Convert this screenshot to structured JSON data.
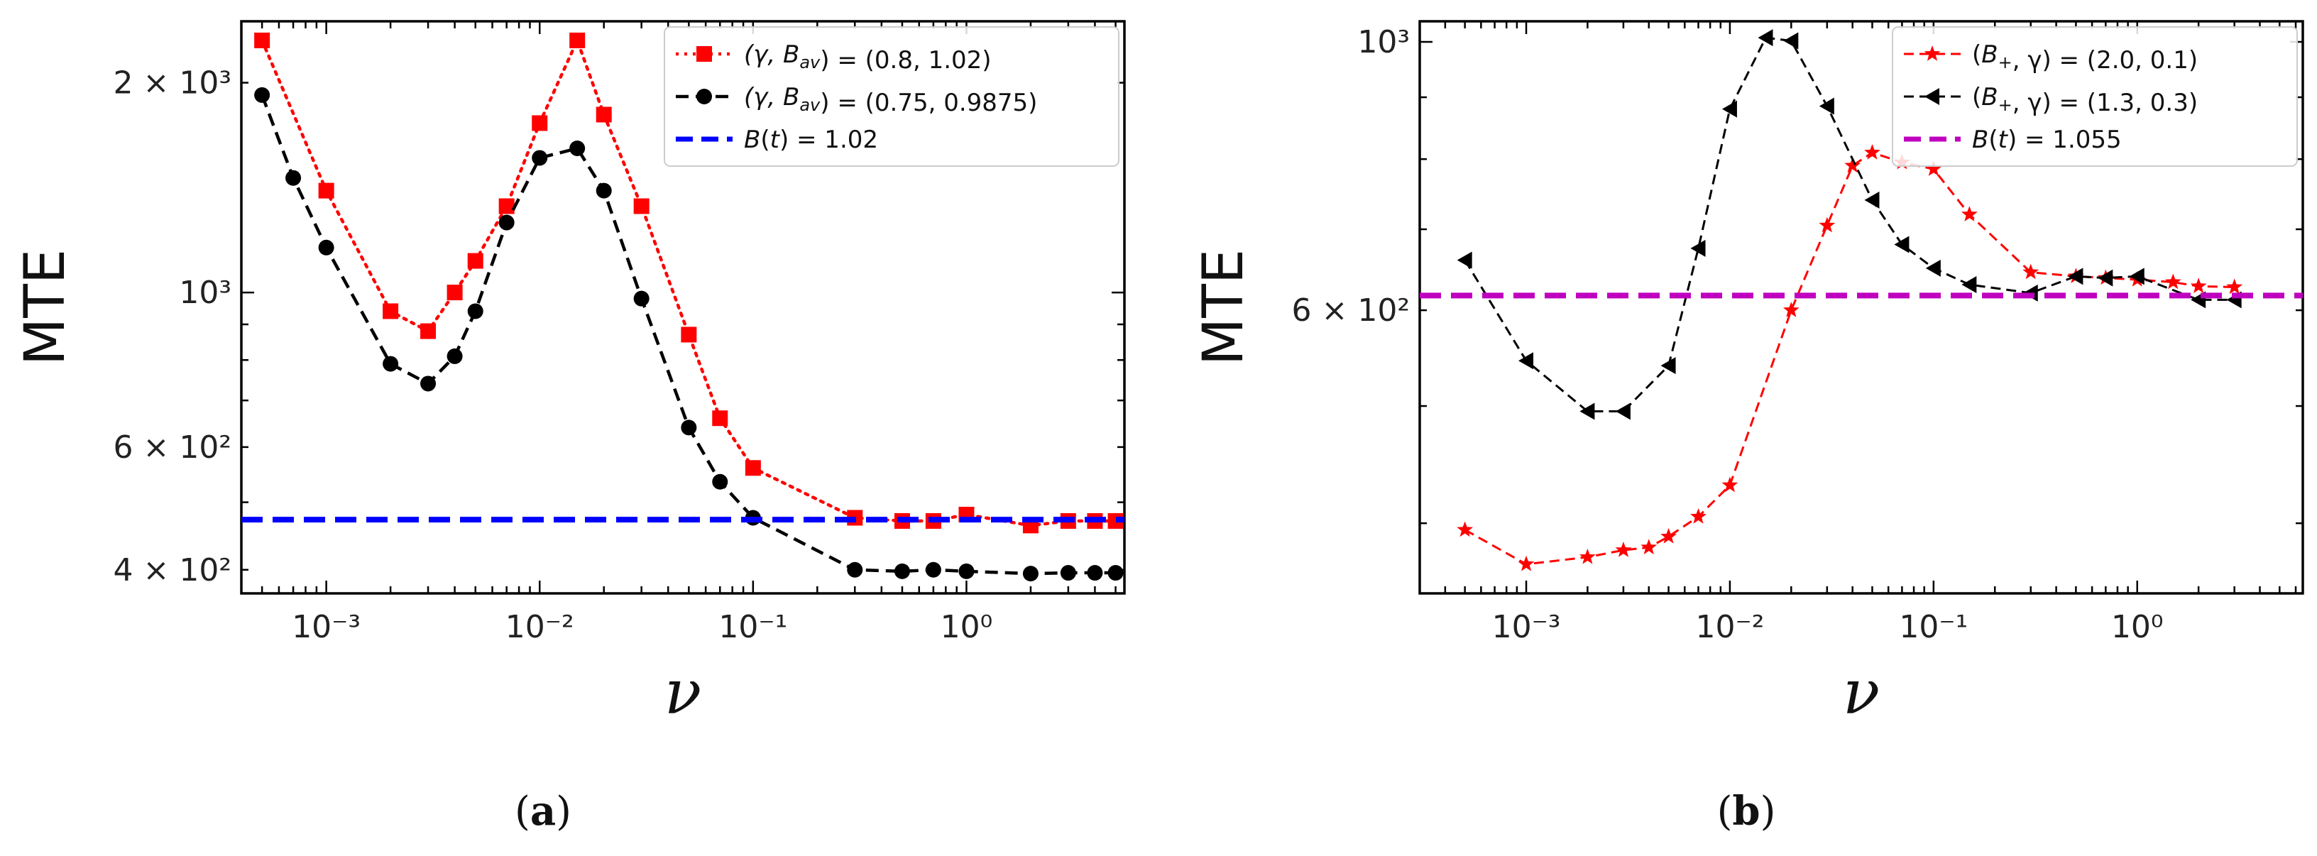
{
  "chart_data": [
    {
      "panel": "a",
      "type": "line",
      "xscale": "log",
      "yscale": "log",
      "xlabel": "ν",
      "ylabel": "MTE",
      "caption": "(a)",
      "xlim": [
        0.0004,
        5.5
      ],
      "ylim": [
        370,
        2450
      ],
      "x_ticks": [
        {
          "value": 0.001,
          "label": "10⁻³"
        },
        {
          "value": 0.01,
          "label": "10⁻²"
        },
        {
          "value": 0.1,
          "label": "10⁻¹"
        },
        {
          "value": 1,
          "label": "10⁰"
        }
      ],
      "y_ticks": [
        {
          "value": 400,
          "label": "4 × 10²"
        },
        {
          "value": 600,
          "label": "6 × 10²"
        },
        {
          "value": 1000,
          "label": "10³"
        },
        {
          "value": 2000,
          "label": "2 × 10³"
        }
      ],
      "legend_position": "top-right",
      "series": [
        {
          "name": "(γ, B_av) = (0.8, 1.02)",
          "style": "dotted-square",
          "color": "#ff0000",
          "x": [
            0.0005,
            0.001,
            0.002,
            0.003,
            0.004,
            0.005,
            0.007,
            0.01,
            0.015,
            0.02,
            0.03,
            0.05,
            0.07,
            0.1,
            0.3,
            0.5,
            0.7,
            1.0,
            2.0,
            3.0,
            4.0,
            5.0
          ],
          "y": [
            2300,
            1400,
            940,
            880,
            1000,
            1110,
            1330,
            1750,
            2300,
            1800,
            1330,
            870,
            660,
            560,
            475,
            470,
            470,
            480,
            463,
            470,
            470,
            470
          ]
        },
        {
          "name": "(γ, B_av) = (0.75, 0.9875)",
          "style": "dashed-circle",
          "color": "#000000",
          "x": [
            0.0005,
            0.0007,
            0.001,
            0.002,
            0.003,
            0.004,
            0.005,
            0.007,
            0.01,
            0.015,
            0.02,
            0.03,
            0.05,
            0.07,
            0.1,
            0.3,
            0.5,
            0.7,
            1.0,
            2.0,
            3.0,
            4.0,
            5.0
          ],
          "y": [
            1920,
            1460,
            1160,
            790,
            740,
            810,
            940,
            1260,
            1560,
            1610,
            1400,
            980,
            640,
            535,
            475,
            400,
            398,
            400,
            398,
            395,
            396,
            396,
            396
          ]
        },
        {
          "name": "B(t) = 1.02",
          "style": "reference-dashed",
          "color": "#0000ff",
          "constant": 472
        }
      ]
    },
    {
      "panel": "b",
      "type": "line",
      "xscale": "log",
      "yscale": "log",
      "xlabel": "ν",
      "ylabel": "MTE",
      "caption": "(b)",
      "xlim": [
        0.0003,
        6.5
      ],
      "ylim": [
        350,
        1040
      ],
      "x_ticks": [
        {
          "value": 0.001,
          "label": "10⁻³"
        },
        {
          "value": 0.01,
          "label": "10⁻²"
        },
        {
          "value": 0.1,
          "label": "10⁻¹"
        },
        {
          "value": 1,
          "label": "10⁰"
        }
      ],
      "y_ticks": [
        {
          "value": 600,
          "label": "6 × 10²"
        },
        {
          "value": 1000,
          "label": "10³"
        }
      ],
      "legend_position": "top-right",
      "series": [
        {
          "name": "(B₊, γ) = (2.0, 0.1)",
          "style": "dashed-star",
          "color": "#ff0000",
          "x": [
            0.0005,
            0.001,
            0.002,
            0.003,
            0.004,
            0.005,
            0.007,
            0.01,
            0.02,
            0.03,
            0.04,
            0.05,
            0.07,
            0.1,
            0.15,
            0.3,
            0.5,
            0.7,
            1.0,
            1.5,
            2.0,
            3.0
          ],
          "y": [
            395,
            370,
            375,
            380,
            382,
            390,
            405,
            430,
            600,
            705,
            790,
            810,
            795,
            785,
            720,
            645,
            640,
            638,
            636,
            633,
            628,
            627
          ]
        },
        {
          "name": "(B₊, γ) = (1.3, 0.3)",
          "style": "dashed-triangle",
          "color": "#000000",
          "x": [
            0.0005,
            0.001,
            0.002,
            0.003,
            0.005,
            0.007,
            0.01,
            0.015,
            0.02,
            0.03,
            0.05,
            0.07,
            0.1,
            0.15,
            0.3,
            0.5,
            0.7,
            1.0,
            2.0,
            3.0
          ],
          "y": [
            660,
            545,
            495,
            495,
            540,
            675,
            880,
            1008,
            1002,
            885,
            740,
            680,
            650,
            630,
            620,
            640,
            638,
            640,
            612,
            612
          ]
        },
        {
          "name": "B(t) = 1.055",
          "style": "reference-dashed",
          "color": "#bf00bf",
          "constant": 617
        }
      ]
    }
  ]
}
